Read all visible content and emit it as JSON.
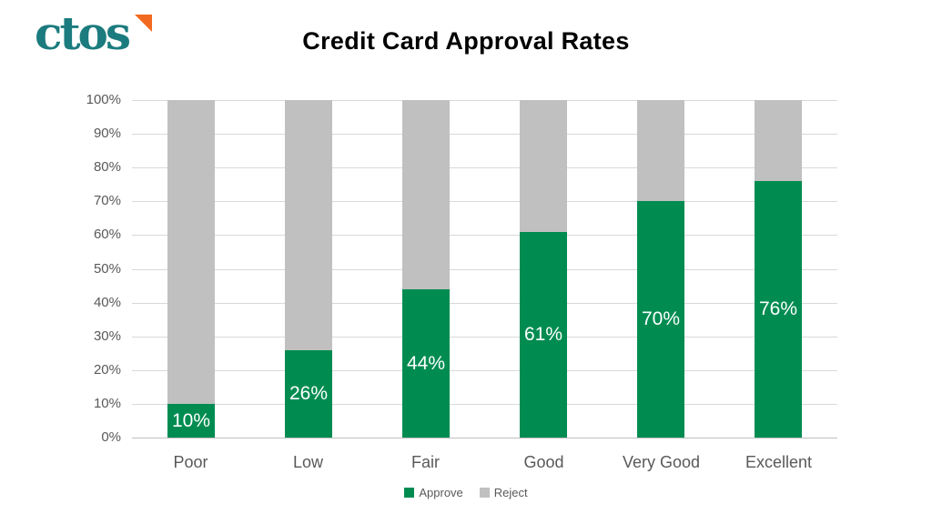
{
  "logo": {
    "text": "ctos"
  },
  "header": {
    "title": "Credit Card Approval Rates"
  },
  "chart_data": {
    "type": "bar",
    "stacked": true,
    "title": "Credit Card Approval Rates",
    "categories": [
      "Poor",
      "Low",
      "Fair",
      "Good",
      "Very Good",
      "Excellent"
    ],
    "series": [
      {
        "name": "Approve",
        "color": "#008C51",
        "values": [
          10,
          26,
          44,
          61,
          70,
          76
        ]
      },
      {
        "name": "Reject",
        "color": "#C0C0C0",
        "values": [
          90,
          74,
          56,
          39,
          30,
          24
        ]
      }
    ],
    "data_labels": [
      "10%",
      "26%",
      "44%",
      "61%",
      "70%",
      "76%"
    ],
    "xlabel": "",
    "ylabel": "",
    "ylim": [
      0,
      100
    ],
    "ytick_step": 10,
    "ytick_labels": [
      "0%",
      "10%",
      "20%",
      "30%",
      "40%",
      "50%",
      "60%",
      "70%",
      "80%",
      "90%",
      "100%"
    ],
    "grid": true,
    "legend_position": "bottom"
  },
  "colors": {
    "approve": "#008C51",
    "reject": "#C0C0C0",
    "gridline": "#D9D9D9",
    "axis_line": "#BFBFBF",
    "axis_text": "#595959",
    "title_text": "#000000",
    "data_label_text": "#FFFFFF",
    "logo_teal": "#1B7B7E",
    "logo_orange": "#F26A21",
    "background": "#FFFFFF"
  }
}
